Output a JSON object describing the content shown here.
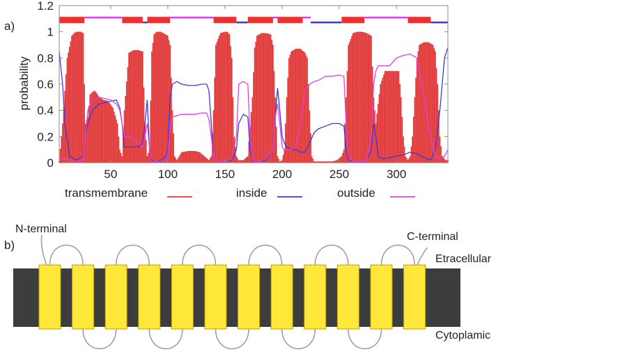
{
  "panel_a_label": "a)",
  "panel_b_label": "b)",
  "chart_data": {
    "type": "line",
    "title": "",
    "xlabel": "",
    "ylabel": "probability",
    "xlim": [
      5,
      345
    ],
    "ylim": [
      0,
      1.2
    ],
    "x_ticks": [
      50,
      100,
      150,
      200,
      250,
      300
    ],
    "y_ticks": [
      0,
      0.2,
      0.4,
      0.6,
      0.8,
      1,
      1.2
    ],
    "y_tick_labels": [
      "0",
      "0.2",
      "0.4",
      "0.6",
      "0.8",
      "1",
      "1.2"
    ],
    "grid": false,
    "legend_position": "bottom",
    "series": [
      {
        "name": "transmembrane",
        "color": "#f03030",
        "style": "filled-bars",
        "x": [
          5,
          8,
          12,
          16,
          18,
          20,
          24,
          26,
          27,
          28,
          30,
          32,
          34,
          36,
          38,
          40,
          44,
          48,
          52,
          56,
          58,
          60,
          62,
          66,
          70,
          74,
          78,
          80,
          82,
          84,
          86,
          88,
          90,
          94,
          98,
          100,
          102,
          104,
          106,
          108,
          112,
          118,
          124,
          128,
          132,
          136,
          138,
          140,
          142,
          146,
          150,
          152,
          154,
          156,
          158,
          160,
          162,
          166,
          170,
          174,
          176,
          178,
          182,
          186,
          190,
          192,
          194,
          196,
          198,
          200,
          202,
          204,
          206,
          208,
          212,
          216,
          220,
          222,
          224,
          226,
          228,
          232,
          236,
          240,
          244,
          248,
          252,
          254,
          256,
          258,
          262,
          266,
          270,
          274,
          278,
          280,
          282,
          286,
          290,
          294,
          298,
          302,
          304,
          306,
          308,
          310,
          312,
          314,
          316,
          318,
          320,
          324,
          328,
          332,
          334,
          336,
          338,
          340,
          343
        ],
        "values": [
          0.01,
          0.3,
          0.8,
          0.97,
          0.99,
          1.0,
          1.0,
          0.99,
          0.6,
          0.3,
          0.35,
          0.52,
          0.54,
          0.55,
          0.53,
          0.5,
          0.48,
          0.47,
          0.42,
          0.3,
          0.1,
          0.05,
          0.4,
          0.84,
          0.86,
          0.86,
          0.85,
          0.3,
          0.05,
          0.1,
          0.85,
          0.98,
          1.0,
          1.0,
          0.98,
          0.97,
          0.9,
          0.4,
          0.05,
          0.02,
          0.08,
          0.09,
          0.09,
          0.08,
          0.05,
          0.02,
          0.05,
          0.4,
          0.9,
          0.99,
          1.0,
          1.0,
          0.98,
          0.8,
          0.2,
          0.05,
          0.02,
          0.02,
          0.05,
          0.5,
          0.88,
          0.97,
          0.99,
          0.99,
          0.98,
          0.9,
          0.5,
          0.05,
          0.01,
          0.02,
          0.1,
          0.5,
          0.8,
          0.85,
          0.87,
          0.87,
          0.84,
          0.8,
          0.4,
          0.05,
          0.01,
          0.01,
          0.01,
          0.01,
          0.01,
          0.02,
          0.05,
          0.1,
          0.5,
          0.9,
          0.99,
          1.0,
          1.0,
          0.99,
          0.97,
          0.5,
          0.3,
          0.6,
          0.7,
          0.7,
          0.7,
          0.7,
          0.5,
          0.2,
          0.05,
          0.02,
          0.05,
          0.2,
          0.5,
          0.8,
          0.9,
          0.92,
          0.92,
          0.9,
          0.85,
          0.6,
          0.2,
          0.05,
          0.02
        ]
      },
      {
        "name": "inside",
        "color": "#3a3adc",
        "x": [
          5,
          8,
          10,
          14,
          20,
          26,
          28,
          30,
          34,
          40,
          50,
          55,
          58,
          60,
          62,
          66,
          70,
          74,
          78,
          80,
          82,
          84,
          86,
          90,
          94,
          98,
          100,
          102,
          104,
          108,
          112,
          118,
          124,
          130,
          134,
          136,
          138,
          140,
          144,
          150,
          156,
          160,
          162,
          166,
          170,
          172,
          174,
          176,
          180,
          186,
          192,
          194,
          196,
          198,
          200,
          202,
          204,
          208,
          212,
          216,
          220,
          224,
          228,
          232,
          238,
          244,
          250,
          254,
          256,
          258,
          262,
          268,
          274,
          278,
          280,
          282,
          284,
          288,
          294,
          300,
          306,
          312,
          318,
          324,
          330,
          334,
          338,
          342,
          345
        ],
        "values": [
          0.85,
          0.6,
          0.3,
          0.05,
          0.02,
          0.05,
          0.2,
          0.3,
          0.4,
          0.45,
          0.47,
          0.48,
          0.42,
          0.3,
          0.12,
          0.12,
          0.12,
          0.12,
          0.15,
          0.3,
          0.48,
          0.1,
          0.02,
          0.01,
          0.02,
          0.04,
          0.1,
          0.5,
          0.6,
          0.62,
          0.6,
          0.59,
          0.59,
          0.6,
          0.6,
          0.55,
          0.3,
          0.05,
          0.01,
          0.01,
          0.02,
          0.1,
          0.3,
          0.37,
          0.35,
          0.1,
          0.02,
          0.01,
          0.01,
          0.02,
          0.1,
          0.35,
          0.57,
          0.4,
          0.2,
          0.15,
          0.12,
          0.1,
          0.1,
          0.08,
          0.08,
          0.15,
          0.23,
          0.26,
          0.28,
          0.3,
          0.3,
          0.28,
          0.1,
          0.02,
          0.01,
          0.01,
          0.02,
          0.1,
          0.3,
          0.2,
          0.05,
          0.03,
          0.04,
          0.05,
          0.06,
          0.08,
          0.07,
          0.04,
          0.02,
          0.1,
          0.4,
          0.8,
          0.88
        ]
      },
      {
        "name": "outside",
        "color": "#e040e0",
        "x": [
          5,
          8,
          10,
          14,
          20,
          26,
          28,
          30,
          34,
          40,
          50,
          55,
          58,
          60,
          62,
          66,
          70,
          74,
          78,
          80,
          82,
          84,
          86,
          90,
          94,
          98,
          100,
          102,
          104,
          108,
          112,
          118,
          124,
          130,
          134,
          136,
          138,
          140,
          144,
          150,
          156,
          160,
          162,
          166,
          170,
          172,
          174,
          176,
          180,
          186,
          192,
          194,
          196,
          198,
          200,
          202,
          204,
          208,
          212,
          216,
          220,
          224,
          228,
          232,
          238,
          244,
          250,
          254,
          256,
          258,
          262,
          268,
          274,
          278,
          280,
          282,
          284,
          288,
          294,
          300,
          306,
          312,
          318,
          324,
          330,
          334,
          338,
          342,
          345
        ],
        "values": [
          0.02,
          0.03,
          0.03,
          0.02,
          0.01,
          0.02,
          0.2,
          0.4,
          0.48,
          0.5,
          0.48,
          0.45,
          0.4,
          0.3,
          0.2,
          0.2,
          0.17,
          0.15,
          0.12,
          0.2,
          0.3,
          0.1,
          0.03,
          0.01,
          0.01,
          0.02,
          0.05,
          0.28,
          0.35,
          0.36,
          0.37,
          0.37,
          0.37,
          0.38,
          0.38,
          0.33,
          0.2,
          0.05,
          0.01,
          0.01,
          0.03,
          0.2,
          0.6,
          0.62,
          0.6,
          0.2,
          0.03,
          0.01,
          0.01,
          0.03,
          0.1,
          0.35,
          0.45,
          0.3,
          0.12,
          0.1,
          0.1,
          0.1,
          0.12,
          0.3,
          0.55,
          0.6,
          0.62,
          0.63,
          0.66,
          0.66,
          0.67,
          0.66,
          0.3,
          0.05,
          0.01,
          0.01,
          0.02,
          0.2,
          0.6,
          0.7,
          0.74,
          0.74,
          0.74,
          0.8,
          0.82,
          0.83,
          0.8,
          0.5,
          0.2,
          0.05,
          0.03,
          0.05,
          0.1
        ]
      }
    ],
    "topology_bar": {
      "y": 1.09,
      "segments": [
        {
          "start": 5,
          "end": 27,
          "kind": "transmembrane"
        },
        {
          "start": 27,
          "end": 60,
          "kind": "outside"
        },
        {
          "start": 60,
          "end": 78,
          "kind": "transmembrane"
        },
        {
          "start": 78,
          "end": 82,
          "kind": "inside"
        },
        {
          "start": 82,
          "end": 102,
          "kind": "transmembrane"
        },
        {
          "start": 102,
          "end": 140,
          "kind": "outside"
        },
        {
          "start": 140,
          "end": 160,
          "kind": "transmembrane"
        },
        {
          "start": 160,
          "end": 170,
          "kind": "inside"
        },
        {
          "start": 170,
          "end": 192,
          "kind": "transmembrane"
        },
        {
          "start": 192,
          "end": 196,
          "kind": "outside"
        },
        {
          "start": 196,
          "end": 218,
          "kind": "transmembrane"
        },
        {
          "start": 218,
          "end": 225,
          "kind": "outside"
        },
        {
          "start": 225,
          "end": 252,
          "kind": "inside"
        },
        {
          "start": 252,
          "end": 272,
          "kind": "transmembrane"
        },
        {
          "start": 272,
          "end": 310,
          "kind": "outside"
        },
        {
          "start": 310,
          "end": 330,
          "kind": "transmembrane"
        },
        {
          "start": 330,
          "end": 345,
          "kind": "inside"
        }
      ]
    }
  },
  "diagram": {
    "n_terminal_label": "N-terminal",
    "c_terminal_label": "C-terminal",
    "extracellular_label": "Etracellular",
    "cytoplasmic_label": "Cytoplamic",
    "membrane_color": "#3d3d3d",
    "helix_color": "#ffe83a",
    "helix_count": 12
  }
}
